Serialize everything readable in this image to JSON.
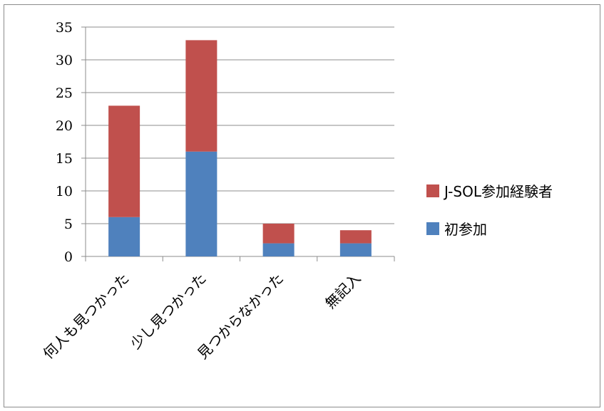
{
  "chart_data": {
    "type": "bar",
    "stacked": true,
    "categories": [
      "何人も見つかった",
      "少し見つかった",
      "見つからなかった",
      "無記入"
    ],
    "series": [
      {
        "name": "初参加",
        "values": [
          6,
          16,
          2,
          2
        ],
        "color": "#4f81bd"
      },
      {
        "name": "J-SOL参加経験者",
        "values": [
          17,
          17,
          3,
          2
        ],
        "color": "#c0504d"
      }
    ],
    "ylim": [
      0,
      35
    ],
    "yticks": [
      0,
      5,
      10,
      15,
      20,
      25,
      30,
      35
    ],
    "grid": true,
    "legend_position": "right",
    "legend_order": [
      "J-SOL参加経験者",
      "初参加"
    ]
  }
}
